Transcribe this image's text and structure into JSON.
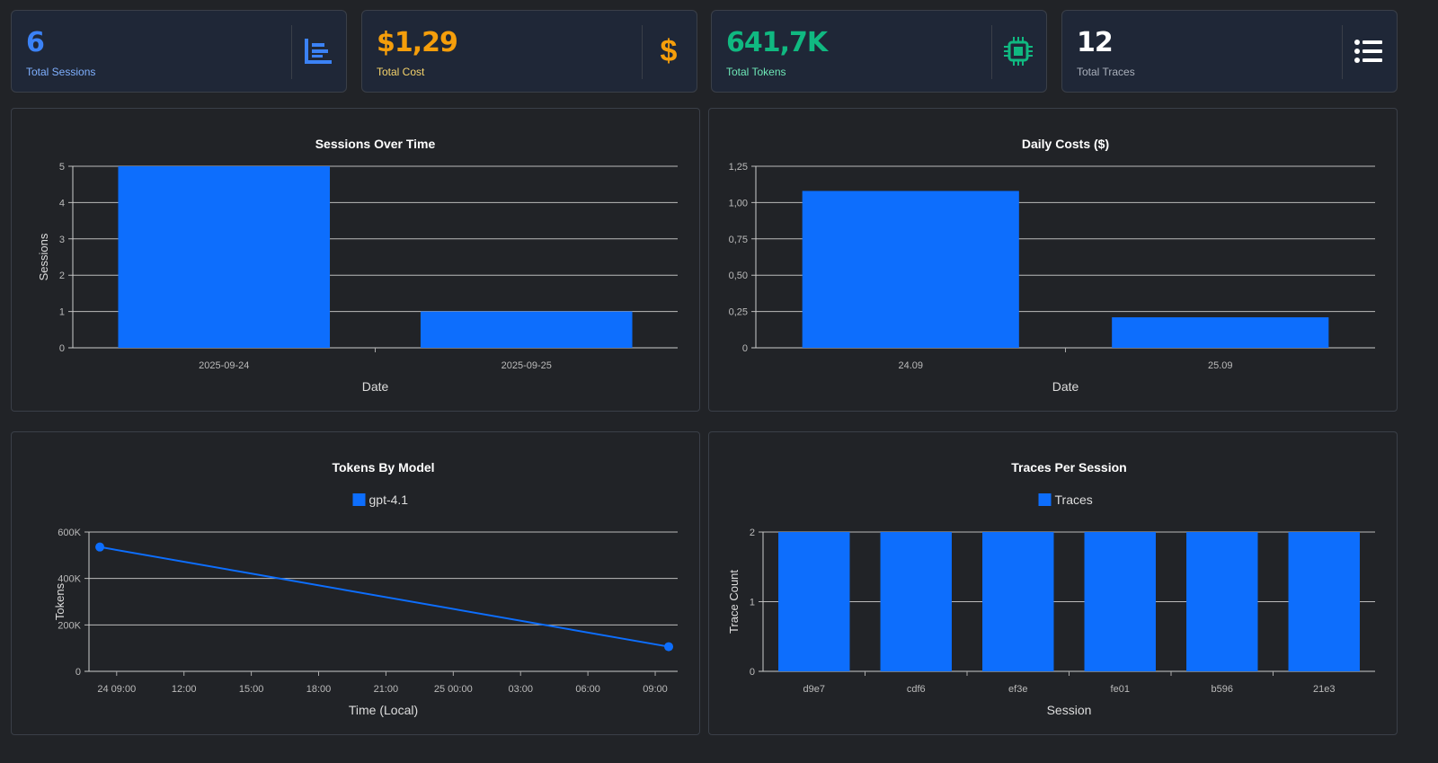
{
  "cards": [
    {
      "value": "6",
      "label": "Total Sessions",
      "color": "#3b82f6",
      "label_color": "#7fb0ff",
      "icon": "bar-chart-icon"
    },
    {
      "value": "$1,29",
      "label": "Total Cost",
      "color": "#f59e0b",
      "label_color": "#f5d36b",
      "icon": "dollar-icon"
    },
    {
      "value": "641,7K",
      "label": "Total Tokens",
      "color": "#10b981",
      "label_color": "#6ee7b7",
      "icon": "cpu-chip-icon"
    },
    {
      "value": "12",
      "label": "Total Traces",
      "color": "#ffffff",
      "label_color": "#aab0bb",
      "icon": "list-icon"
    }
  ],
  "chart_data": [
    {
      "type": "bar",
      "title": "Sessions Over Time",
      "xlabel": "Date",
      "ylabel": "Sessions",
      "categories": [
        "2025-09-24",
        "2025-09-25"
      ],
      "values": [
        5,
        1
      ],
      "ylim": [
        0,
        5
      ],
      "yticks": [
        "0",
        "1",
        "2",
        "3",
        "4",
        "5"
      ],
      "grid": true,
      "color": "#0d6efd"
    },
    {
      "type": "bar",
      "title": "Daily Costs ($)",
      "xlabel": "Date",
      "ylabel": "",
      "categories": [
        "24.09",
        "25.09"
      ],
      "values": [
        1.08,
        0.21
      ],
      "ylim": [
        0,
        1.25
      ],
      "yticks": [
        "0",
        "0,25",
        "0,50",
        "0,75",
        "1,00",
        "1,25"
      ],
      "grid": true,
      "color": "#0d6efd"
    },
    {
      "type": "line",
      "title": "Tokens By Model",
      "xlabel": "Time (Local)",
      "ylabel": "Tokens",
      "legend": "top",
      "series": [
        {
          "name": "gpt-4.1",
          "x": [
            "24 08:15",
            "25 09:36"
          ],
          "values": [
            535500,
            106200
          ]
        }
      ],
      "xlim": [
        "24 07:46",
        "25 10:00"
      ],
      "xticks": [
        "24 09:00",
        "12:00",
        "15:00",
        "18:00",
        "21:00",
        "25 00:00",
        "03:00",
        "06:00",
        "09:00"
      ],
      "ylim": [
        0,
        600000
      ],
      "yticks": [
        "0",
        "200K",
        "400K",
        "600K"
      ],
      "grid": true,
      "color": "#0d6efd"
    },
    {
      "type": "bar",
      "title": "Traces Per Session",
      "xlabel": "Session",
      "ylabel": "Trace Count",
      "legend": "top",
      "series_name": "Traces",
      "categories": [
        "d9e7",
        "cdf6",
        "ef3e",
        "fe01",
        "b596",
        "21e3"
      ],
      "values": [
        2,
        2,
        2,
        2,
        2,
        2
      ],
      "ylim": [
        0,
        2
      ],
      "yticks": [
        "0",
        "1",
        "2"
      ],
      "grid": true,
      "color": "#0d6efd"
    }
  ]
}
